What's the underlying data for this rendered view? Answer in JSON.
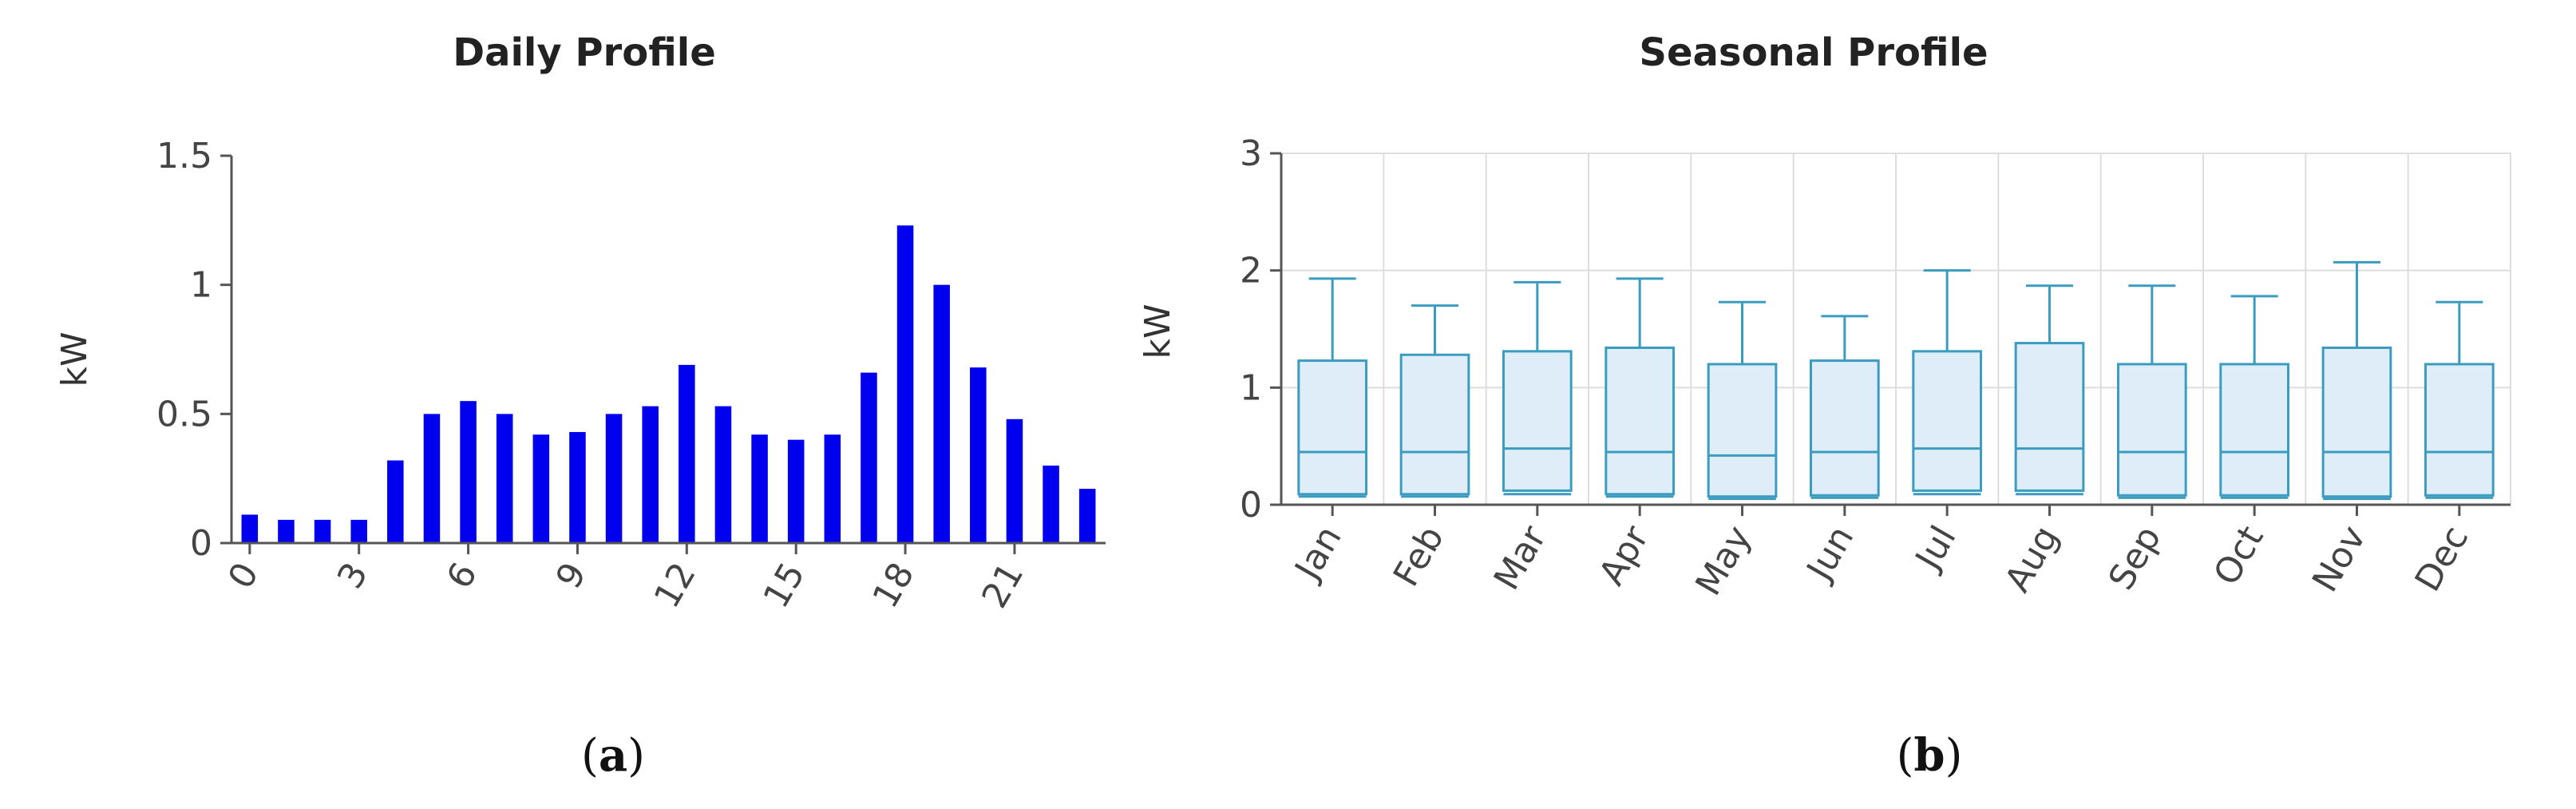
{
  "chart_data": [
    {
      "type": "bar",
      "title": "Daily Profile",
      "ylabel": "kW",
      "xlabel": "",
      "caption_letter": "a",
      "ylim": [
        0,
        1.5
      ],
      "yticks": [
        "0",
        "0.5",
        "1",
        "1.5"
      ],
      "ytick_values": [
        0,
        0.5,
        1,
        1.5
      ],
      "xticks": [
        "0",
        "3",
        "6",
        "9",
        "12",
        "15",
        "18",
        "21"
      ],
      "xtick_values": [
        0,
        3,
        6,
        9,
        12,
        15,
        18,
        21
      ],
      "x": [
        0,
        1,
        2,
        3,
        4,
        5,
        6,
        7,
        8,
        9,
        10,
        11,
        12,
        13,
        14,
        15,
        16,
        17,
        18,
        19,
        20,
        21,
        22,
        23
      ],
      "values": [
        0.11,
        0.09,
        0.09,
        0.09,
        0.32,
        0.5,
        0.55,
        0.5,
        0.42,
        0.43,
        0.5,
        0.53,
        0.69,
        0.53,
        0.42,
        0.4,
        0.42,
        0.66,
        1.23,
        1.0,
        0.68,
        0.48,
        0.3,
        0.21
      ],
      "bar_color": "#0000ee",
      "grid": false
    },
    {
      "type": "boxplot",
      "title": "Seasonal Profile",
      "ylabel": "kW",
      "xlabel": "",
      "caption_letter": "b",
      "ylim": [
        0,
        3
      ],
      "yticks": [
        "0",
        "1",
        "2",
        "3"
      ],
      "ytick_values": [
        0,
        1,
        2,
        3
      ],
      "categories": [
        "Jan",
        "Feb",
        "Mar",
        "Apr",
        "May",
        "Jun",
        "Jul",
        "Aug",
        "Sep",
        "Oct",
        "Nov",
        "Dec"
      ],
      "boxes": [
        {
          "min": 0.07,
          "q1": 0.09,
          "median": 0.45,
          "q3": 1.23,
          "max": 1.93
        },
        {
          "min": 0.07,
          "q1": 0.09,
          "median": 0.45,
          "q3": 1.28,
          "max": 1.7
        },
        {
          "min": 0.09,
          "q1": 0.12,
          "median": 0.48,
          "q3": 1.31,
          "max": 1.9
        },
        {
          "min": 0.07,
          "q1": 0.09,
          "median": 0.45,
          "q3": 1.34,
          "max": 1.93
        },
        {
          "min": 0.05,
          "q1": 0.07,
          "median": 0.42,
          "q3": 1.2,
          "max": 1.73
        },
        {
          "min": 0.06,
          "q1": 0.08,
          "median": 0.45,
          "q3": 1.23,
          "max": 1.61
        },
        {
          "min": 0.09,
          "q1": 0.12,
          "median": 0.48,
          "q3": 1.31,
          "max": 2.0
        },
        {
          "min": 0.09,
          "q1": 0.12,
          "median": 0.48,
          "q3": 1.38,
          "max": 1.87
        },
        {
          "min": 0.06,
          "q1": 0.08,
          "median": 0.45,
          "q3": 1.2,
          "max": 1.87
        },
        {
          "min": 0.06,
          "q1": 0.08,
          "median": 0.45,
          "q3": 1.2,
          "max": 1.78
        },
        {
          "min": 0.05,
          "q1": 0.07,
          "median": 0.45,
          "q3": 1.34,
          "max": 2.07
        },
        {
          "min": 0.06,
          "q1": 0.08,
          "median": 0.45,
          "q3": 1.2,
          "max": 1.73
        }
      ],
      "box_fill": "#deedf7",
      "box_stroke": "#3b9cc0",
      "grid": true,
      "grid_color": "#dddddd"
    }
  ]
}
